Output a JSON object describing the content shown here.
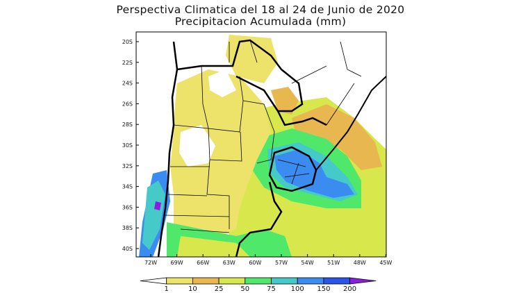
{
  "title": {
    "line1": "Perspectiva Climatica del 18 al 24 de Junio de 2020",
    "line2": "Precipitacion Acumulada (mm)"
  },
  "map": {
    "lat_labels": [
      "20S",
      "22S",
      "24S",
      "26S",
      "28S",
      "30S",
      "32S",
      "34S",
      "36S",
      "38S",
      "40S"
    ],
    "lon_labels": [
      "72W",
      "69W",
      "66W",
      "63W",
      "60W",
      "57W",
      "54W",
      "51W",
      "48W",
      "45W"
    ],
    "colorbar": {
      "levels": [
        "1",
        "10",
        "25",
        "50",
        "75",
        "100",
        "150",
        "200"
      ],
      "colors": [
        "#ffffff",
        "#ede26a",
        "#e8b74f",
        "#d8e74c",
        "#4fe86a",
        "#45c9c9",
        "#3a8cf0",
        "#2b55e6",
        "#8a1ee0"
      ]
    }
  }
}
